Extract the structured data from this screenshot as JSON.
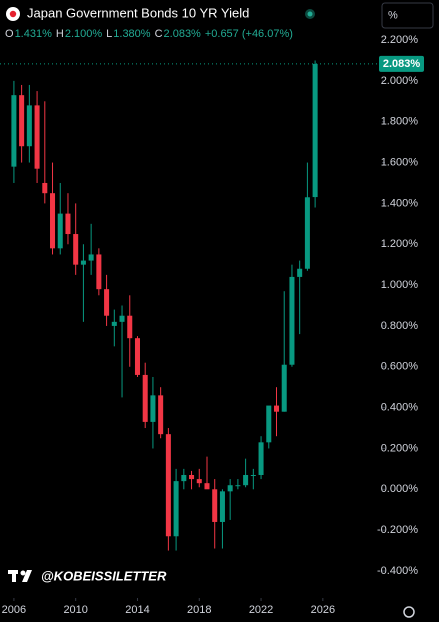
{
  "header": {
    "title": "Japan Government Bonds 10 YR Yield",
    "ohlc_letters": [
      "O",
      "H",
      "L",
      "C"
    ],
    "ohlc_values": [
      "1.431%",
      "2.100%",
      "1.380%",
      "2.083%"
    ],
    "change": "+0.657 (+46.07%)",
    "unit_button": "%",
    "watermark": "@KOBEISSILETTER"
  },
  "chart_data": {
    "type": "candlestick",
    "x": [
      2006.0,
      2006.5,
      2007.0,
      2007.5,
      2008.0,
      2008.5,
      2009.0,
      2009.5,
      2010.0,
      2010.5,
      2011.0,
      2011.5,
      2012.0,
      2012.5,
      2013.0,
      2013.5,
      2014.0,
      2014.5,
      2015.0,
      2015.5,
      2016.0,
      2016.5,
      2017.0,
      2017.5,
      2018.0,
      2018.5,
      2019.0,
      2019.5,
      2020.0,
      2020.5,
      2021.0,
      2021.5,
      2022.0,
      2022.5,
      2023.0,
      2023.5,
      2024.0,
      2024.5,
      2025.0,
      2025.5
    ],
    "open": [
      1.58,
      1.93,
      1.68,
      1.88,
      1.5,
      1.45,
      1.18,
      1.35,
      1.25,
      1.1,
      1.12,
      1.15,
      0.98,
      0.8,
      0.82,
      0.85,
      0.74,
      0.56,
      0.33,
      0.46,
      0.27,
      -0.23,
      0.04,
      0.07,
      0.05,
      0.03,
      0.0,
      -0.16,
      -0.01,
      0.02,
      0.02,
      0.07,
      0.07,
      0.23,
      0.41,
      0.38,
      0.61,
      1.04,
      1.08,
      1.431
    ],
    "high": [
      2.0,
      1.98,
      1.98,
      1.95,
      1.9,
      1.6,
      1.5,
      1.45,
      1.4,
      1.2,
      1.3,
      1.18,
      1.05,
      0.88,
      0.9,
      0.95,
      0.75,
      0.62,
      0.55,
      0.5,
      0.3,
      0.1,
      0.1,
      0.09,
      0.1,
      0.16,
      0.05,
      0.0,
      0.05,
      0.05,
      0.15,
      0.1,
      0.26,
      0.4,
      0.5,
      0.97,
      1.1,
      1.12,
      1.6,
      2.1
    ],
    "low": [
      1.5,
      1.6,
      1.6,
      1.5,
      1.4,
      1.15,
      1.15,
      1.2,
      1.05,
      0.82,
      1.05,
      0.95,
      0.8,
      0.7,
      0.45,
      0.6,
      0.55,
      0.3,
      0.2,
      0.25,
      -0.3,
      -0.3,
      0.0,
      0.0,
      0.01,
      0.02,
      -0.29,
      -0.29,
      -0.15,
      0.0,
      0.01,
      0.0,
      0.05,
      0.2,
      0.26,
      0.38,
      0.6,
      0.76,
      1.07,
      1.38
    ],
    "close": [
      1.93,
      1.68,
      1.88,
      1.57,
      1.45,
      1.18,
      1.35,
      1.25,
      1.1,
      1.12,
      1.15,
      0.98,
      0.85,
      0.82,
      0.85,
      0.74,
      0.56,
      0.33,
      0.46,
      0.27,
      -0.23,
      0.04,
      0.07,
      0.05,
      0.03,
      0.0,
      -0.16,
      -0.01,
      0.02,
      0.02,
      0.07,
      0.07,
      0.23,
      0.41,
      0.38,
      0.61,
      1.04,
      1.08,
      1.43,
      2.083
    ],
    "up_color": "#089981",
    "down_color": "#f23645",
    "last_price_label": "2.083%",
    "ylim": [
      -0.5,
      2.35
    ],
    "yticks": [
      {
        "value": -0.4,
        "label": "-0.400%"
      },
      {
        "value": -0.2,
        "label": "-0.200%"
      },
      {
        "value": 0,
        "label": "0.000%"
      },
      {
        "value": 0.2,
        "label": "0.200%"
      },
      {
        "value": 0.4,
        "label": "0.400%"
      },
      {
        "value": 0.6,
        "label": "0.600%"
      },
      {
        "value": 0.8,
        "label": "0.800%"
      },
      {
        "value": 1.0,
        "label": "1.000%"
      },
      {
        "value": 1.2,
        "label": "1.200%"
      },
      {
        "value": 1.4,
        "label": "1.400%"
      },
      {
        "value": 1.6,
        "label": "1.600%"
      },
      {
        "value": 1.8,
        "label": "1.800%"
      },
      {
        "value": 2.0,
        "label": "2.000%"
      },
      {
        "value": 2.2,
        "label": "2.200%"
      }
    ],
    "xlim": [
      2005.1,
      2029.7
    ],
    "xticks": [
      2006,
      2010,
      2014,
      2018,
      2022,
      2026
    ]
  }
}
